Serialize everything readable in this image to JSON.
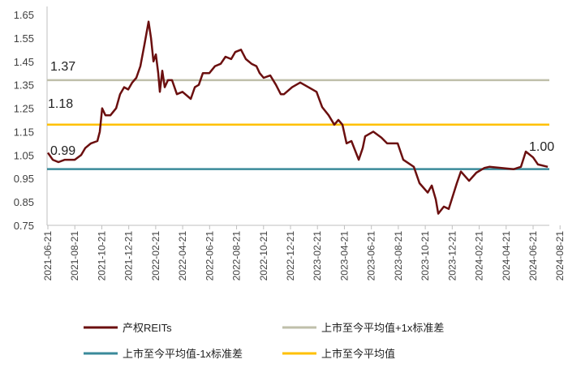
{
  "chart_data": {
    "type": "line",
    "title": "",
    "xlabel": "",
    "ylabel": "",
    "ylim": [
      0.75,
      1.65
    ],
    "yticks": [
      "1.65",
      "1.55",
      "1.45",
      "1.35",
      "1.25",
      "1.15",
      "1.05",
      "0.95",
      "0.85",
      "0.75"
    ],
    "x_unit": "months since 2021-06-21",
    "xlim": [
      0,
      37.2
    ],
    "xtick_labels": [
      "2021-06-21",
      "2021-08-21",
      "2021-10-21",
      "2021-12-21",
      "2022-02-21",
      "2022-04-21",
      "2022-06-21",
      "2022-08-21",
      "2022-10-21",
      "2022-12-21",
      "2023-02-21",
      "2023-04-21",
      "2023-06-21",
      "2023-08-21",
      "2023-10-21",
      "2023-12-21",
      "2024-02-21",
      "2024-04-21",
      "2024-06-21",
      "2024-08-21"
    ],
    "grid": false,
    "legend_position": "bottom",
    "series": [
      {
        "name": "产权REITs",
        "color": "#6b0f0f",
        "points": [
          [
            0,
            1.06
          ],
          [
            0.36,
            1.03
          ],
          [
            0.78,
            1.02
          ],
          [
            1.26,
            1.03
          ],
          [
            1.99,
            1.03
          ],
          [
            2.47,
            1.05
          ],
          [
            2.77,
            1.08
          ],
          [
            3.19,
            1.1
          ],
          [
            3.67,
            1.11
          ],
          [
            3.85,
            1.15
          ],
          [
            4.03,
            1.25
          ],
          [
            4.27,
            1.22
          ],
          [
            4.64,
            1.22
          ],
          [
            5.06,
            1.25
          ],
          [
            5.36,
            1.31
          ],
          [
            5.66,
            1.34
          ],
          [
            5.96,
            1.33
          ],
          [
            6.26,
            1.36
          ],
          [
            6.56,
            1.38
          ],
          [
            6.86,
            1.43
          ],
          [
            7.16,
            1.52
          ],
          [
            7.47,
            1.62
          ],
          [
            7.65,
            1.55
          ],
          [
            7.83,
            1.45
          ],
          [
            8.01,
            1.48
          ],
          [
            8.19,
            1.4
          ],
          [
            8.31,
            1.32
          ],
          [
            8.49,
            1.41
          ],
          [
            8.67,
            1.34
          ],
          [
            8.91,
            1.37
          ],
          [
            9.21,
            1.37
          ],
          [
            9.57,
            1.31
          ],
          [
            9.99,
            1.32
          ],
          [
            10.6,
            1.29
          ],
          [
            10.9,
            1.34
          ],
          [
            11.2,
            1.35
          ],
          [
            11.5,
            1.4
          ],
          [
            11.98,
            1.4
          ],
          [
            12.4,
            1.43
          ],
          [
            12.82,
            1.44
          ],
          [
            13.18,
            1.47
          ],
          [
            13.6,
            1.46
          ],
          [
            13.9,
            1.49
          ],
          [
            14.33,
            1.5
          ],
          [
            14.69,
            1.46
          ],
          [
            15.11,
            1.44
          ],
          [
            15.47,
            1.43
          ],
          [
            15.71,
            1.4
          ],
          [
            16.01,
            1.38
          ],
          [
            16.5,
            1.39
          ],
          [
            16.92,
            1.35
          ],
          [
            17.28,
            1.31
          ],
          [
            17.52,
            1.31
          ],
          [
            18.12,
            1.34
          ],
          [
            18.72,
            1.36
          ],
          [
            19.33,
            1.34
          ],
          [
            19.93,
            1.32
          ],
          [
            20.35,
            1.255
          ],
          [
            20.83,
            1.22
          ],
          [
            21.25,
            1.18
          ],
          [
            21.55,
            1.2
          ],
          [
            21.85,
            1.18
          ],
          [
            22.16,
            1.1
          ],
          [
            22.52,
            1.11
          ],
          [
            23.06,
            1.03
          ],
          [
            23.36,
            1.08
          ],
          [
            23.54,
            1.13
          ],
          [
            24.14,
            1.15
          ],
          [
            24.74,
            1.125
          ],
          [
            25.17,
            1.1
          ],
          [
            25.95,
            1.1
          ],
          [
            26.37,
            1.03
          ],
          [
            27.15,
            1.0
          ],
          [
            27.57,
            0.93
          ],
          [
            28.18,
            0.89
          ],
          [
            28.48,
            0.92
          ],
          [
            28.78,
            0.86
          ],
          [
            28.96,
            0.8
          ],
          [
            29.38,
            0.83
          ],
          [
            29.74,
            0.82
          ],
          [
            30.34,
            0.93
          ],
          [
            30.64,
            0.98
          ],
          [
            31.25,
            0.94
          ],
          [
            31.79,
            0.975
          ],
          [
            32.39,
            0.995
          ],
          [
            32.75,
            1.0
          ],
          [
            34.56,
            0.99
          ],
          [
            35.1,
            1.0
          ],
          [
            35.46,
            1.065
          ],
          [
            36.0,
            1.04
          ],
          [
            36.36,
            1.01
          ],
          [
            37.09,
            1.0
          ]
        ]
      },
      {
        "name": "上市至今平均值+1x标准差",
        "color": "#bfbfaa",
        "constant": 1.37
      },
      {
        "name": "上市至今平均值-1x标准差",
        "color": "#3a8a9a",
        "constant": 0.99
      },
      {
        "name": "上市至今平均值",
        "color": "#ffc000",
        "constant": 1.18
      }
    ],
    "annotations": [
      "1.37",
      "1.18",
      "0.99",
      "1.00"
    ]
  }
}
